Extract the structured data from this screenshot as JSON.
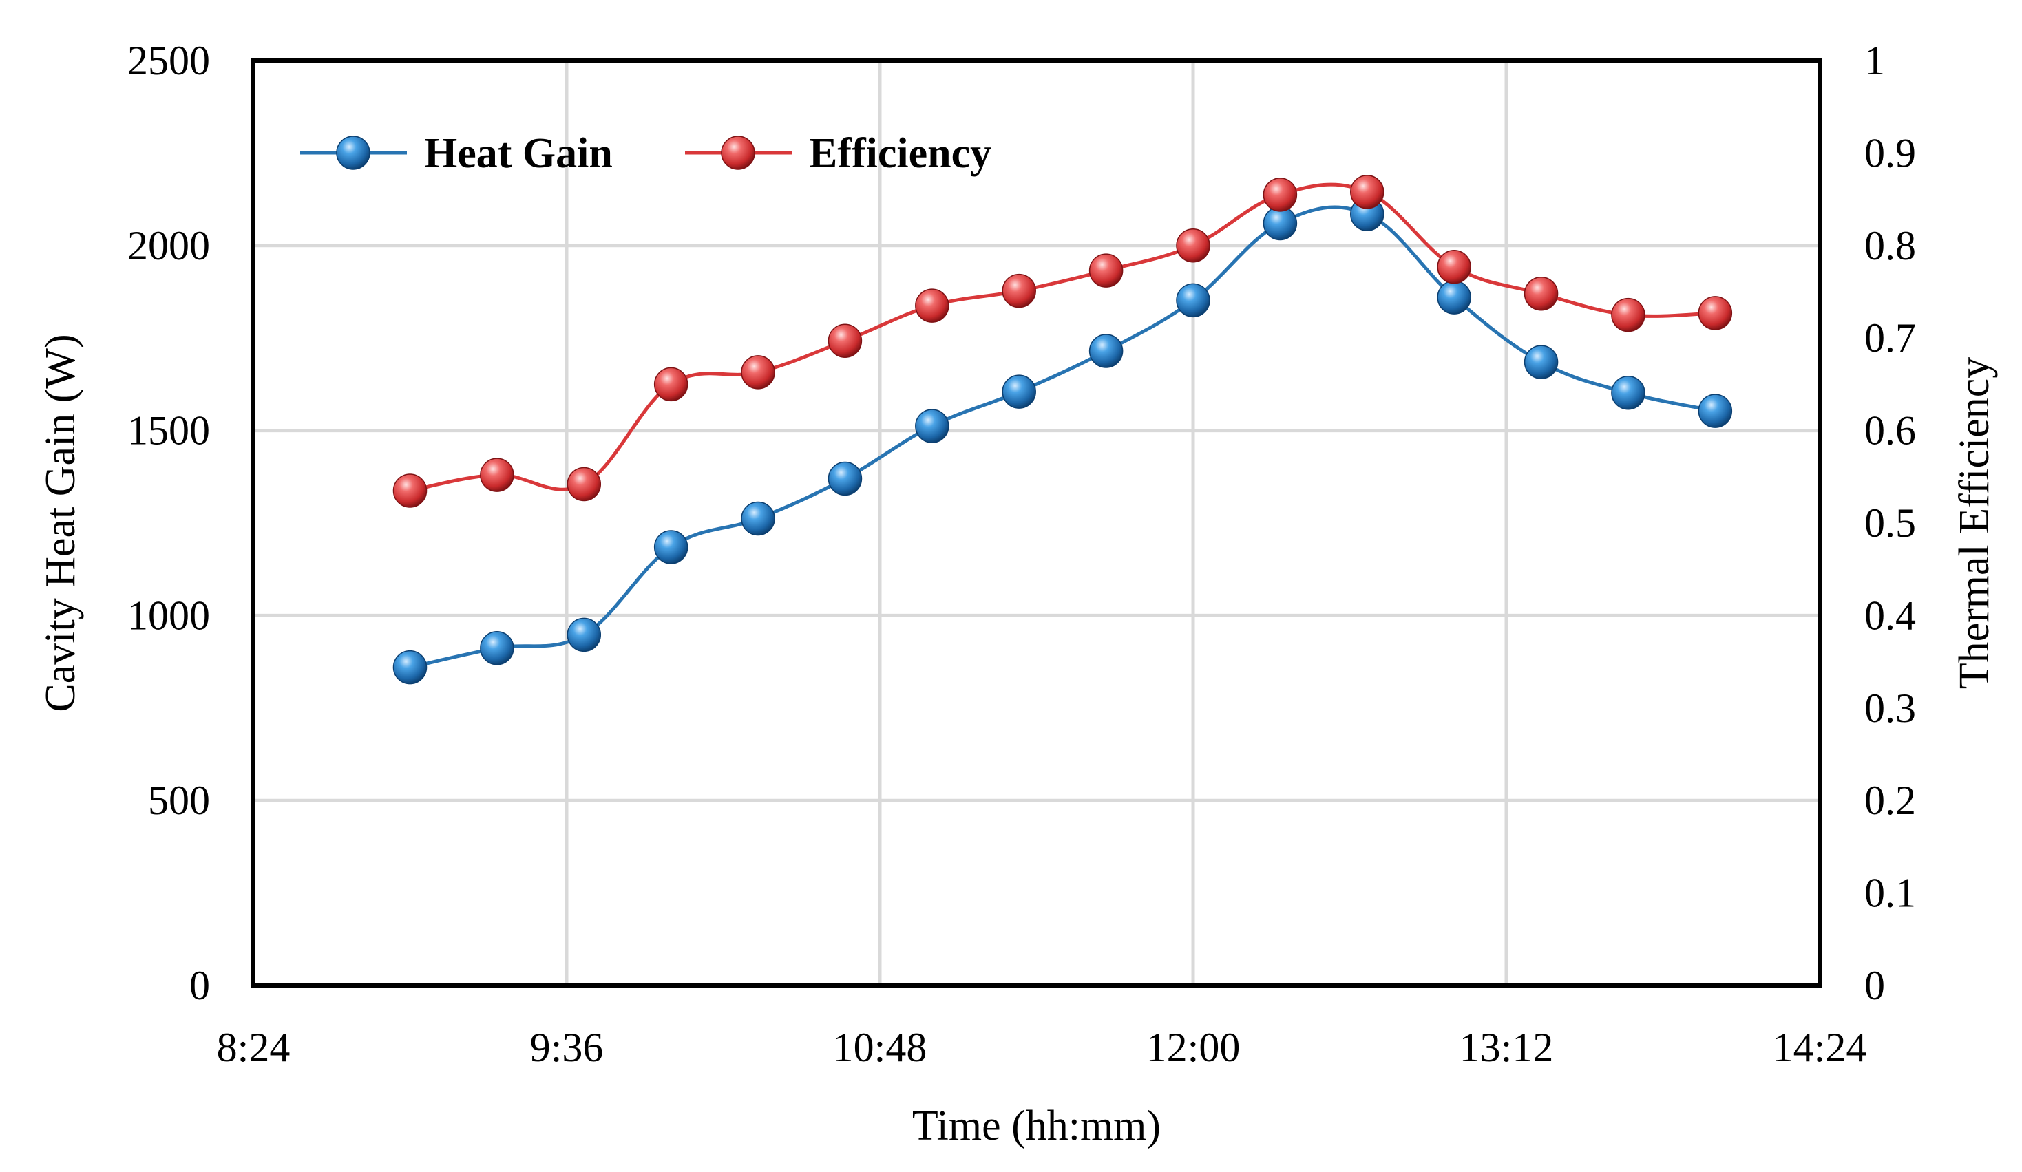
{
  "chart_data": {
    "type": "line",
    "title": "",
    "xlabel": "Time (hh:mm)",
    "ylabel_left": "Cavity Heat Gain (W)",
    "ylabel_right": "Thermal Efficiency",
    "x_ticks": [
      "8:24",
      "9:36",
      "10:48",
      "12:00",
      "13:12",
      "14:24"
    ],
    "xlim": [
      "8:24",
      "14:24"
    ],
    "y_left_ticks": [
      "0",
      "500",
      "1000",
      "1500",
      "2000",
      "2500"
    ],
    "y_left_lim": [
      0,
      2500
    ],
    "y_right_ticks": [
      "0",
      "0.1",
      "0.2",
      "0.3",
      "0.4",
      "0.5",
      "0.6",
      "0.7",
      "0.8",
      "0.9",
      "1"
    ],
    "y_right_lim": [
      0,
      1
    ],
    "grid": true,
    "legend_position": "top-left",
    "x": [
      "9:00",
      "9:20",
      "9:40",
      "10:00",
      "10:20",
      "10:40",
      "11:00",
      "11:20",
      "11:40",
      "12:00",
      "12:20",
      "12:40",
      "13:00",
      "13:20",
      "13:40",
      "14:00"
    ],
    "series": [
      {
        "name": "Heat Gain",
        "axis": "left",
        "color": "#2874b2",
        "values": [
          860,
          912,
          948,
          1185,
          1262,
          1370,
          1512,
          1605,
          1715,
          1852,
          2060,
          2085,
          1860,
          1685,
          1602,
          1553
        ]
      },
      {
        "name": "Efficiency",
        "axis": "right",
        "color": "#d9383a",
        "values": [
          0.535,
          0.552,
          0.542,
          0.65,
          0.663,
          0.697,
          0.735,
          0.751,
          0.773,
          0.8,
          0.855,
          0.858,
          0.777,
          0.748,
          0.725,
          0.727
        ]
      }
    ]
  }
}
